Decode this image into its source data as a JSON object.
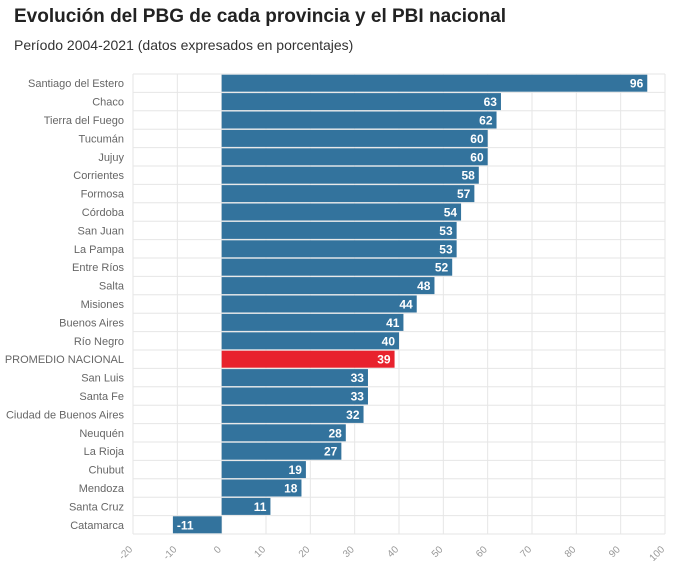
{
  "title": "Evolución del PBG de cada provincia y el PBI nacional",
  "subtitle": "Período 2004-2021 (datos expresados en porcentajes)",
  "colors": {
    "bar": "#33739d",
    "highlight": "#e8222d",
    "grid": "#e6e6e6"
  },
  "chart_data": {
    "type": "bar",
    "orientation": "horizontal",
    "title": "Evolución del PBG de cada provincia y el PBI nacional",
    "subtitle": "Período 2004-2021 (datos expresados en porcentajes)",
    "categories": [
      "Santiago del Estero",
      "Chaco",
      "Tierra del Fuego",
      "Tucumán",
      "Jujuy",
      "Corrientes",
      "Formosa",
      "Córdoba",
      "San Juan",
      "La Pampa",
      "Entre Ríos",
      "Salta",
      "Misiones",
      "Buenos Aires",
      "Río Negro",
      "PROMEDIO NACIONAL",
      "San Luis",
      "Santa Fe",
      "Ciudad de Buenos Aires",
      "Neuquén",
      "La Rioja",
      "Chubut",
      "Mendoza",
      "Santa Cruz",
      "Catamarca"
    ],
    "values": [
      96,
      63,
      62,
      60,
      60,
      58,
      57,
      54,
      53,
      53,
      52,
      48,
      44,
      41,
      40,
      39,
      33,
      33,
      32,
      28,
      27,
      19,
      18,
      11,
      -11
    ],
    "highlight_category": "PROMEDIO NACIONAL",
    "xlim": [
      -20,
      100
    ],
    "xticks": [
      -20,
      -10,
      0,
      10,
      20,
      30,
      40,
      50,
      60,
      70,
      80,
      90,
      100
    ],
    "grid": true
  }
}
